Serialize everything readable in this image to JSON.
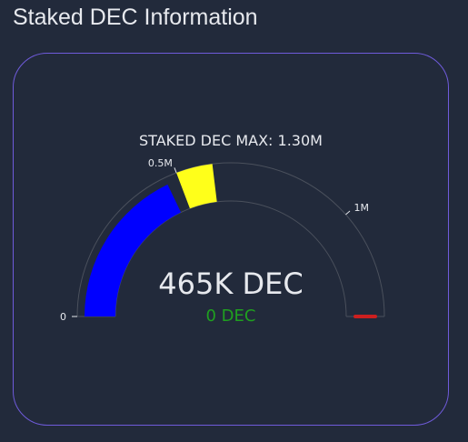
{
  "page": {
    "title": "Staked DEC Information"
  },
  "chart_data": {
    "type": "gauge",
    "title": "STAKED DEC MAX: 1.30M",
    "range": [
      0,
      1300000
    ],
    "value": 465000,
    "value_label": "465K DEC",
    "delta_label": "0 DEC",
    "threshold": 1300000,
    "ticks": [
      {
        "value": 0,
        "label": "0"
      },
      {
        "value": 500000,
        "label": "0.5M"
      },
      {
        "value": 1000000,
        "label": "1M"
      }
    ],
    "steps": [
      {
        "range": [
          500000,
          600000
        ],
        "color": "#ffff1a"
      }
    ],
    "colors": {
      "bar": "#0000ff",
      "step": "#ffff1a",
      "threshold": "#cc1f1f",
      "delta": "#1fa01f",
      "value_text": "#e7e9ee",
      "axis_line": "#4a505c",
      "tick_label": "#e7e9ee",
      "title_text": "#e7e9ee"
    }
  }
}
